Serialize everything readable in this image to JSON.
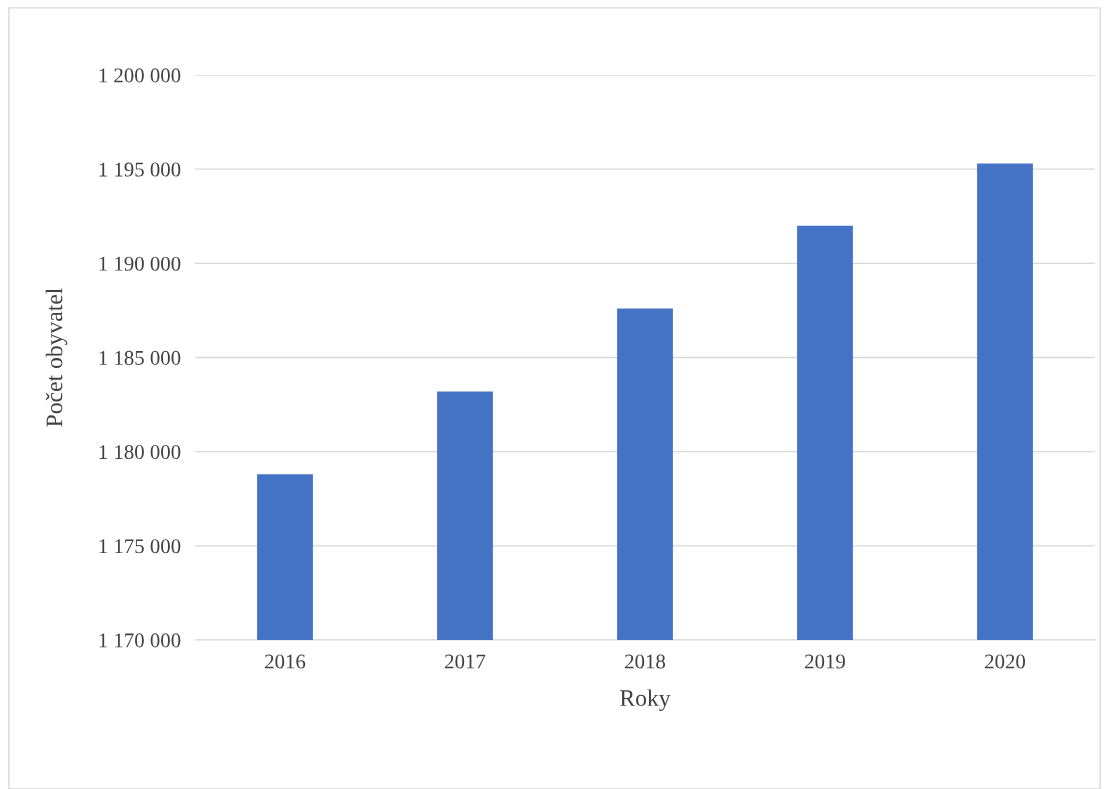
{
  "chart_data": {
    "type": "bar",
    "xlabel": "Roky",
    "ylabel": "Počet obyvatel",
    "categories": [
      "2016",
      "2017",
      "2018",
      "2019",
      "2020"
    ],
    "values": [
      1178800,
      1183200,
      1187600,
      1192000,
      1195300
    ],
    "color": "#4472c4",
    "ylim": [
      1170000,
      1200000
    ],
    "yticks": [
      {
        "value": 1170000,
        "label": "1 170 000"
      },
      {
        "value": 1175000,
        "label": "1 175 000"
      },
      {
        "value": 1180000,
        "label": "1 180 000"
      },
      {
        "value": 1185000,
        "label": "1 185 000"
      },
      {
        "value": 1190000,
        "label": "1 190 000"
      },
      {
        "value": 1195000,
        "label": "1 195 000"
      },
      {
        "value": 1200000,
        "label": "1 200 000"
      }
    ],
    "grid": "y"
  }
}
